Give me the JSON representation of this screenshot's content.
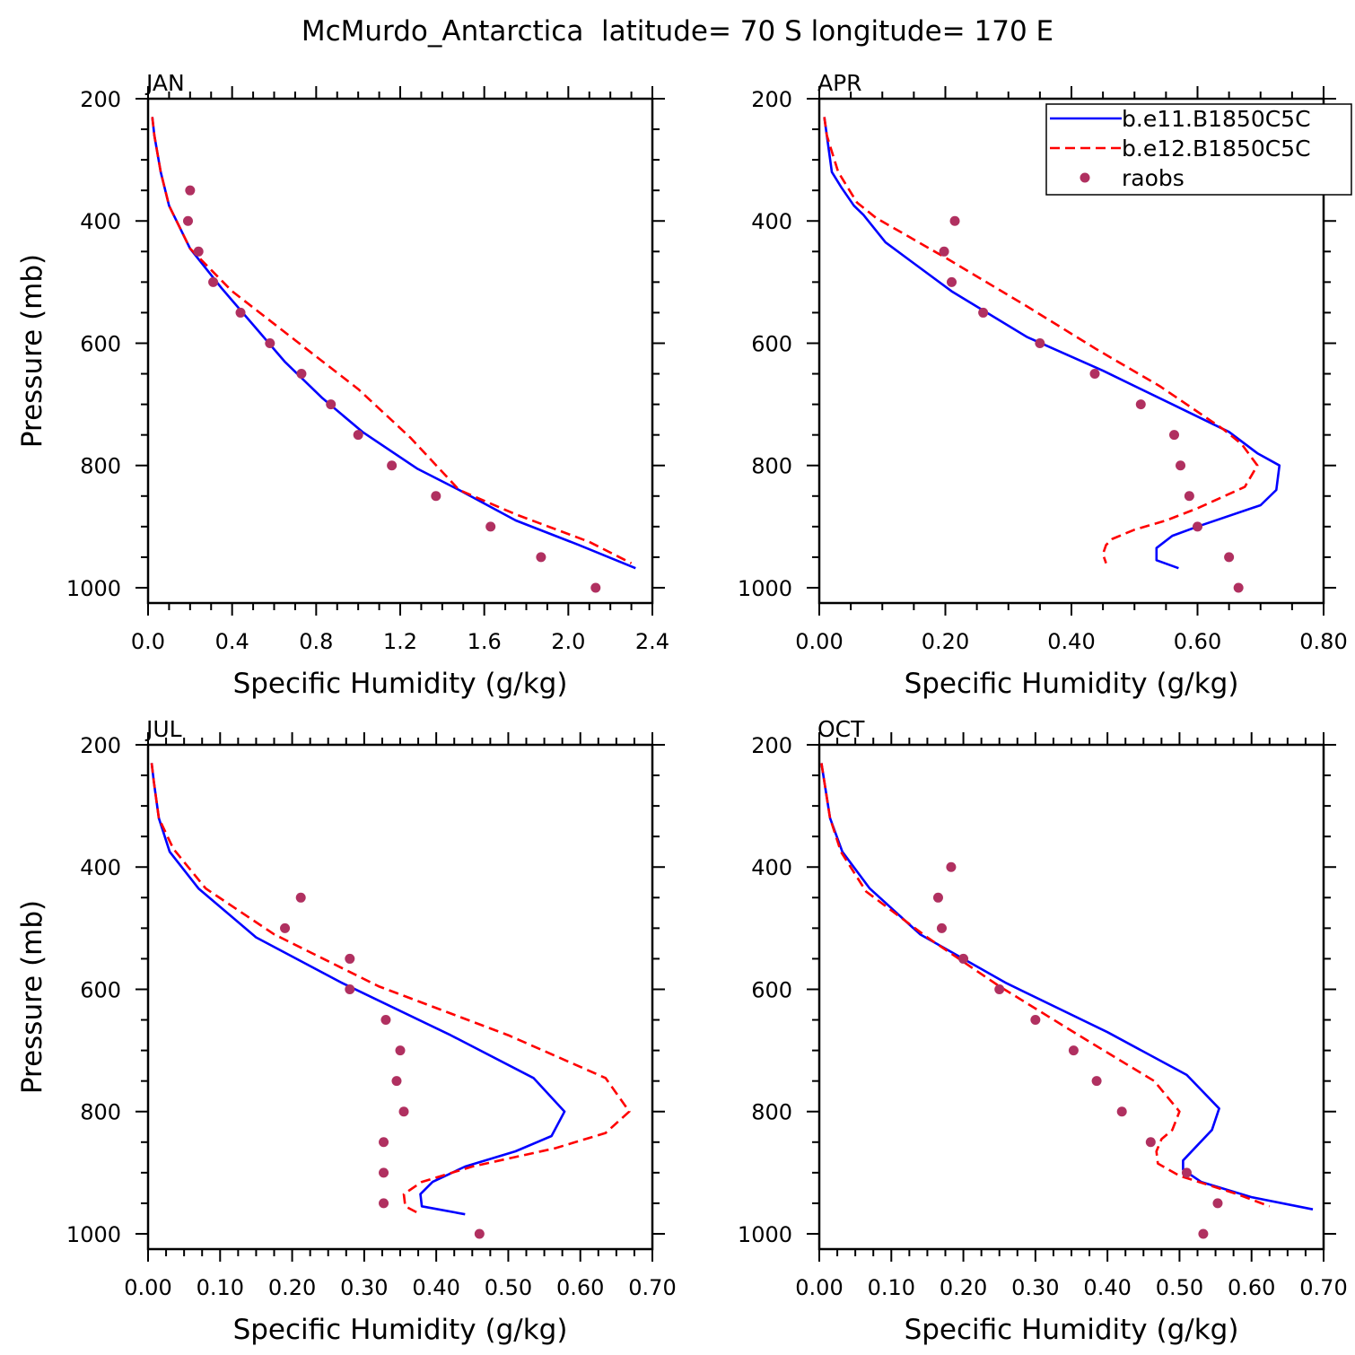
{
  "figure": {
    "title": "McMurdo_Antarctica  latitude= 70 S longitude= 170 E",
    "colors": {
      "model_e11": "#0000ff",
      "model_e12": "#ff0000",
      "raobs": "#b03060"
    }
  },
  "legend": {
    "placement": "top-right of APR panel",
    "entries": [
      {
        "label": "b.e11.B1850C5C",
        "style": "solid",
        "color": "#0000ff"
      },
      {
        "label": "b.e12.B1850C5C",
        "style": "dashed",
        "color": "#ff0000"
      },
      {
        "label": "raobs",
        "style": "dot",
        "color": "#b03060"
      }
    ]
  },
  "chart_data": [
    {
      "type": "line",
      "title": "JAN",
      "xlabel": "Specific Humidity (g/kg)",
      "ylabel": "Pressure (mb)",
      "xlim": [
        0,
        2.4
      ],
      "ylim": [
        200,
        1025
      ],
      "y_inverted": true,
      "xticks": [
        "0.0",
        "0.4",
        "0.8",
        "1.2",
        "1.6",
        "2.0",
        "2.4"
      ],
      "xtick_values": [
        0,
        0.4,
        0.8,
        1.2,
        1.6,
        2.0,
        2.4
      ],
      "yticks": [
        "200",
        "400",
        "600",
        "800",
        "1000"
      ],
      "ytick_values": [
        200,
        400,
        600,
        800,
        1000
      ],
      "series": [
        {
          "style": "solid",
          "color": "#0000ff",
          "x": [
            0.02,
            0.03,
            0.06,
            0.1,
            0.2,
            0.35,
            0.5,
            0.65,
            0.83,
            1.02,
            1.28,
            1.48,
            1.75,
            2.05,
            2.32
          ],
          "y": [
            230,
            260,
            320,
            375,
            445,
            510,
            570,
            630,
            690,
            745,
            805,
            840,
            890,
            930,
            968
          ]
        },
        {
          "style": "dashed",
          "color": "#ff0000",
          "x": [
            0.02,
            0.03,
            0.06,
            0.1,
            0.2,
            0.4,
            0.7,
            1.0,
            1.25,
            1.48,
            1.75,
            2.1,
            2.3
          ],
          "y": [
            230,
            260,
            320,
            375,
            445,
            515,
            595,
            675,
            755,
            840,
            880,
            925,
            960
          ]
        },
        {
          "style": "dots",
          "color": "#b03060",
          "x": [
            0.2,
            0.19,
            0.24,
            0.31,
            0.44,
            0.58,
            0.73,
            0.87,
            1.0,
            1.16,
            1.37,
            1.63,
            1.87,
            2.13
          ],
          "y": [
            350,
            400,
            450,
            500,
            550,
            600,
            650,
            700,
            750,
            800,
            850,
            900,
            950,
            1000
          ]
        }
      ]
    },
    {
      "type": "line",
      "title": "APR",
      "xlabel": "Specific Humidity (g/kg)",
      "ylabel": "",
      "xlim": [
        0,
        0.8
      ],
      "ylim": [
        200,
        1025
      ],
      "y_inverted": true,
      "xticks": [
        "0.00",
        "0.20",
        "0.40",
        "0.60",
        "0.80"
      ],
      "xtick_values": [
        0,
        0.2,
        0.4,
        0.6,
        0.8
      ],
      "yticks": [
        "200",
        "400",
        "600",
        "800",
        "1000"
      ],
      "ytick_values": [
        200,
        400,
        600,
        800,
        1000
      ],
      "series": [
        {
          "style": "solid",
          "color": "#0000ff",
          "x": [
            0.008,
            0.012,
            0.02,
            0.035,
            0.055,
            0.07,
            0.105,
            0.21,
            0.33,
            0.45,
            0.56,
            0.65,
            0.695,
            0.73,
            0.725,
            0.7,
            0.6,
            0.56,
            0.535,
            0.535,
            0.57
          ],
          "y": [
            230,
            260,
            320,
            345,
            375,
            390,
            435,
            515,
            590,
            645,
            700,
            745,
            780,
            800,
            840,
            865,
            900,
            915,
            935,
            955,
            968
          ]
        },
        {
          "style": "dashed",
          "color": "#ff0000",
          "x": [
            0.008,
            0.012,
            0.03,
            0.045,
            0.06,
            0.09,
            0.2,
            0.33,
            0.44,
            0.54,
            0.64,
            0.67,
            0.695,
            0.675,
            0.6,
            0.55,
            0.5,
            0.465,
            0.455,
            0.45,
            0.455
          ],
          "y": [
            230,
            260,
            320,
            345,
            370,
            395,
            460,
            540,
            610,
            670,
            740,
            765,
            800,
            835,
            870,
            890,
            905,
            920,
            930,
            945,
            960
          ]
        },
        {
          "style": "dots",
          "color": "#b03060",
          "x": [
            0.215,
            0.198,
            0.21,
            0.26,
            0.35,
            0.437,
            0.51,
            0.563,
            0.573,
            0.587,
            0.6,
            0.65,
            0.665
          ],
          "y": [
            400,
            450,
            500,
            550,
            600,
            650,
            700,
            750,
            800,
            850,
            900,
            950,
            1000
          ]
        }
      ]
    },
    {
      "type": "line",
      "title": "JUL",
      "xlabel": "Specific Humidity (g/kg)",
      "ylabel": "Pressure (mb)",
      "xlim": [
        0,
        0.7
      ],
      "ylim": [
        200,
        1025
      ],
      "y_inverted": true,
      "xticks": [
        "0.00",
        "0.10",
        "0.20",
        "0.30",
        "0.40",
        "0.50",
        "0.60",
        "0.70"
      ],
      "xtick_values": [
        0,
        0.1,
        0.2,
        0.3,
        0.4,
        0.5,
        0.6,
        0.7
      ],
      "yticks": [
        "200",
        "400",
        "600",
        "800",
        "1000"
      ],
      "ytick_values": [
        200,
        400,
        600,
        800,
        1000
      ],
      "series": [
        {
          "style": "solid",
          "color": "#0000ff",
          "x": [
            0.005,
            0.008,
            0.015,
            0.03,
            0.07,
            0.15,
            0.27,
            0.42,
            0.535,
            0.578,
            0.56,
            0.51,
            0.44,
            0.395,
            0.378,
            0.38,
            0.44
          ],
          "y": [
            230,
            260,
            320,
            375,
            435,
            515,
            590,
            675,
            745,
            800,
            840,
            865,
            890,
            915,
            935,
            955,
            968
          ]
        },
        {
          "style": "dashed",
          "color": "#ff0000",
          "x": [
            0.005,
            0.008,
            0.015,
            0.035,
            0.08,
            0.175,
            0.32,
            0.5,
            0.635,
            0.668,
            0.635,
            0.565,
            0.45,
            0.38,
            0.355,
            0.357,
            0.378
          ],
          "y": [
            230,
            260,
            320,
            370,
            435,
            510,
            595,
            675,
            745,
            800,
            835,
            860,
            890,
            915,
            935,
            955,
            968
          ]
        },
        {
          "style": "dots",
          "color": "#b03060",
          "x": [
            0.212,
            0.19,
            0.28,
            0.28,
            0.33,
            0.35,
            0.345,
            0.355,
            0.327,
            0.327,
            0.327,
            0.46
          ],
          "y": [
            450,
            500,
            550,
            600,
            650,
            700,
            750,
            800,
            850,
            900,
            950,
            1000
          ]
        }
      ]
    },
    {
      "type": "line",
      "title": "OCT",
      "xlabel": "Specific Humidity (g/kg)",
      "ylabel": "",
      "xlim": [
        0,
        0.7
      ],
      "ylim": [
        200,
        1025
      ],
      "y_inverted": true,
      "xticks": [
        "0.00",
        "0.10",
        "0.20",
        "0.30",
        "0.40",
        "0.50",
        "0.60",
        "0.70"
      ],
      "xtick_values": [
        0,
        0.1,
        0.2,
        0.3,
        0.4,
        0.5,
        0.6,
        0.7
      ],
      "yticks": [
        "200",
        "400",
        "600",
        "800",
        "1000"
      ],
      "ytick_values": [
        200,
        400,
        600,
        800,
        1000
      ],
      "series": [
        {
          "style": "solid",
          "color": "#0000ff",
          "x": [
            0.003,
            0.007,
            0.015,
            0.032,
            0.07,
            0.14,
            0.26,
            0.4,
            0.51,
            0.555,
            0.545,
            0.525,
            0.505,
            0.505,
            0.53,
            0.6,
            0.685
          ],
          "y": [
            230,
            260,
            320,
            375,
            435,
            510,
            590,
            670,
            740,
            795,
            830,
            855,
            880,
            895,
            915,
            940,
            960
          ]
        },
        {
          "style": "dashed",
          "color": "#ff0000",
          "x": [
            0.003,
            0.007,
            0.015,
            0.03,
            0.065,
            0.15,
            0.25,
            0.36,
            0.465,
            0.5,
            0.49,
            0.475,
            0.468,
            0.47,
            0.5,
            0.58,
            0.625
          ],
          "y": [
            230,
            260,
            320,
            375,
            440,
            515,
            595,
            675,
            750,
            800,
            830,
            845,
            865,
            885,
            905,
            935,
            955
          ]
        },
        {
          "style": "dots",
          "color": "#b03060",
          "x": [
            0.183,
            0.165,
            0.17,
            0.2,
            0.25,
            0.3,
            0.353,
            0.385,
            0.42,
            0.46,
            0.51,
            0.553,
            0.533
          ],
          "y": [
            400,
            450,
            500,
            550,
            600,
            650,
            700,
            750,
            800,
            850,
            900,
            950,
            1000
          ]
        }
      ]
    }
  ]
}
